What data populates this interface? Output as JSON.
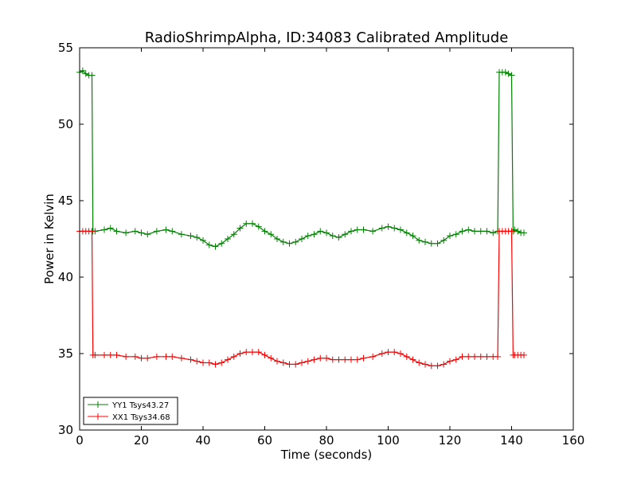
{
  "chart_data": {
    "type": "line",
    "title": "RadioShrimpAlpha, ID:34083 Calibrated Amplitude",
    "xlabel": "Time (seconds)",
    "ylabel": "Power in Kelvin",
    "xlim": [
      0,
      160
    ],
    "ylim": [
      30,
      55
    ],
    "xticks": [
      "0",
      "20",
      "40",
      "60",
      "80",
      "100",
      "120",
      "140",
      "160"
    ],
    "yticks": [
      "30",
      "35",
      "40",
      "45",
      "50",
      "55"
    ],
    "grid": false,
    "legend_position": "lower-left",
    "marker": "+",
    "series": [
      {
        "name": "YY1 Tsys43.27",
        "color": "#008000",
        "x": [
          0,
          1,
          2,
          3,
          4,
          4.3,
          5,
          8,
          10,
          12,
          15,
          18,
          20,
          22,
          25,
          28,
          30,
          33,
          36,
          38,
          40,
          42,
          44,
          46,
          48,
          50,
          52,
          54,
          56,
          58,
          60,
          62,
          64,
          66,
          68,
          70,
          72,
          74,
          76,
          78,
          80,
          82,
          84,
          86,
          88,
          90,
          92,
          95,
          98,
          100,
          102,
          104,
          106,
          108,
          110,
          112,
          114,
          116,
          118,
          120,
          122,
          124,
          126,
          128,
          130,
          132,
          134,
          135.5,
          136,
          137,
          138,
          139,
          140,
          140.5,
          141,
          142,
          143,
          144
        ],
        "y": [
          53.4,
          53.5,
          53.3,
          53.2,
          53.2,
          43.0,
          43.0,
          43.1,
          43.2,
          43.0,
          42.9,
          43.0,
          42.9,
          42.8,
          43.0,
          43.1,
          43.0,
          42.8,
          42.7,
          42.6,
          42.4,
          42.1,
          42.0,
          42.2,
          42.5,
          42.8,
          43.2,
          43.5,
          43.5,
          43.3,
          43.0,
          42.8,
          42.5,
          42.3,
          42.2,
          42.3,
          42.5,
          42.7,
          42.8,
          43.0,
          42.9,
          42.7,
          42.6,
          42.8,
          43.0,
          43.1,
          43.1,
          43.0,
          43.2,
          43.3,
          43.2,
          43.1,
          42.9,
          42.7,
          42.4,
          42.3,
          42.2,
          42.2,
          42.4,
          42.7,
          42.8,
          43.0,
          43.1,
          43.0,
          43.0,
          43.0,
          42.9,
          43.0,
          53.4,
          53.4,
          53.4,
          53.3,
          53.2,
          43.0,
          43.1,
          43.0,
          42.9,
          42.9
        ]
      },
      {
        "name": "XX1 Tsys34.68",
        "color": "#ff0000",
        "x": [
          0,
          1,
          2,
          3,
          4,
          4.3,
          5,
          8,
          10,
          12,
          15,
          18,
          20,
          22,
          25,
          28,
          30,
          33,
          36,
          38,
          40,
          42,
          44,
          46,
          48,
          50,
          52,
          54,
          56,
          58,
          60,
          62,
          64,
          66,
          68,
          70,
          72,
          74,
          76,
          78,
          80,
          82,
          84,
          86,
          88,
          90,
          92,
          95,
          98,
          100,
          102,
          104,
          106,
          108,
          110,
          112,
          114,
          116,
          118,
          120,
          122,
          124,
          126,
          128,
          130,
          132,
          134,
          135.5,
          136,
          137,
          138,
          139,
          140,
          140.5,
          141,
          142,
          143,
          144
        ],
        "y": [
          43.0,
          43.0,
          43.0,
          43.0,
          43.0,
          34.9,
          34.9,
          34.9,
          34.9,
          34.9,
          34.8,
          34.8,
          34.7,
          34.7,
          34.8,
          34.8,
          34.8,
          34.7,
          34.6,
          34.5,
          34.4,
          34.4,
          34.3,
          34.4,
          34.6,
          34.8,
          35.0,
          35.1,
          35.1,
          35.1,
          34.9,
          34.7,
          34.5,
          34.4,
          34.3,
          34.3,
          34.4,
          34.5,
          34.6,
          34.7,
          34.7,
          34.6,
          34.6,
          34.6,
          34.6,
          34.6,
          34.7,
          34.8,
          35.0,
          35.1,
          35.1,
          35.0,
          34.8,
          34.6,
          34.4,
          34.3,
          34.2,
          34.2,
          34.3,
          34.5,
          34.6,
          34.8,
          34.8,
          34.8,
          34.8,
          34.8,
          34.8,
          34.8,
          43.0,
          43.0,
          43.0,
          43.0,
          43.0,
          34.9,
          34.9,
          34.9,
          34.9,
          34.9
        ]
      }
    ]
  }
}
